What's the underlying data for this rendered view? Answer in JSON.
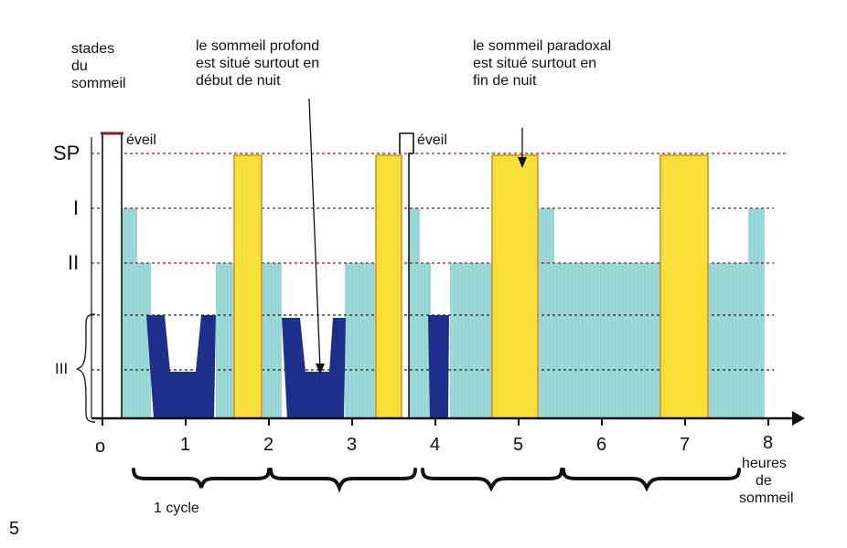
{
  "y_axis_title": [
    "stades",
    "du",
    "sommeil"
  ],
  "stage_labels": {
    "sp": "SP",
    "i": "I",
    "ii": "II",
    "iii": "III"
  },
  "annotations": {
    "deep": [
      "le sommeil profond",
      "est situé surtout en",
      "début de nuit"
    ],
    "paradoxical": [
      "le sommeil paradoxal",
      "est situé surtout en",
      "fin de nuit"
    ],
    "wake_1": "éveil",
    "wake_2": "éveil"
  },
  "x_axis": {
    "origin_label": "o",
    "ticks": [
      "1",
      "2",
      "3",
      "4",
      "5",
      "6",
      "7",
      "8"
    ],
    "title": [
      "heures",
      "de",
      "sommeil"
    ]
  },
  "cycle_label": "1 cycle",
  "figure_number": "5",
  "colors": {
    "paradoxical": "#f7e03a",
    "light_sleep": "#8fd3d3",
    "deep_sleep": "#1d2f8a",
    "wake": "#ffffff",
    "guide_line": "#8a1a1a",
    "axis": "#111111"
  },
  "chart_data": {
    "type": "hypnogram",
    "x_unit": "heures de sommeil",
    "x_range": [
      0,
      8
    ],
    "stage_levels": [
      "III",
      "II",
      "I",
      "SP"
    ],
    "paradoxical_sleep_hours": [
      [
        1.6,
        1.9
      ],
      [
        3.25,
        3.55
      ],
      [
        4.65,
        5.2
      ],
      [
        6.65,
        7.2
      ]
    ],
    "deep_sleep_hours": [
      [
        0.55,
        1.35
      ],
      [
        2.2,
        3.0
      ],
      [
        3.95,
        4.2
      ]
    ],
    "wake_hours": [
      [
        0.05,
        0.25
      ],
      [
        3.55,
        3.7
      ]
    ],
    "light_sleep_hours": [
      [
        0.25,
        8.1
      ]
    ]
  }
}
